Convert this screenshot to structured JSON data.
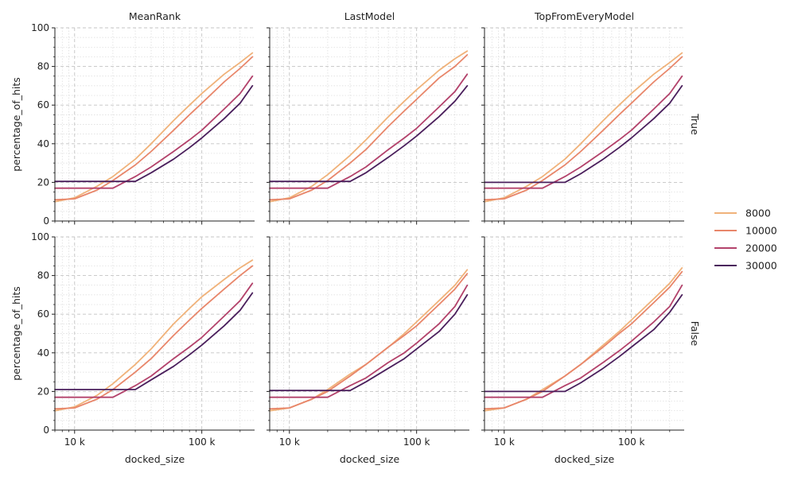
{
  "chart_data": {
    "type": "line",
    "layout": "facet-grid",
    "x_scale": "log",
    "xlabel": "docked_size",
    "ylabel": "percentage_of_hits",
    "xlim": [
      7000,
      260000
    ],
    "ylim": [
      0,
      100
    ],
    "x_ticks": [
      {
        "value": 10000,
        "label": "10 k"
      },
      {
        "value": 100000,
        "label": "100 k"
      }
    ],
    "y_ticks": [
      0,
      20,
      40,
      60,
      80,
      100
    ],
    "grid": true,
    "legend_position": "right",
    "columns": [
      "MeanRank",
      "LastModel",
      "TopFromEveryModel"
    ],
    "rows": [
      "True",
      "False"
    ],
    "colors": {
      "8000": "#f0b27a",
      "10000": "#e8866a",
      "20000": "#b3426b",
      "30000": "#4a1f5c"
    },
    "x": [
      7000,
      10000,
      15000,
      20000,
      30000,
      40000,
      60000,
      80000,
      100000,
      150000,
      200000,
      250000
    ],
    "panels": [
      {
        "column": "MeanRank",
        "row": "True",
        "series": [
          {
            "name": "8000",
            "values": [
              10,
              12,
              18,
              23,
              32,
              40,
              52,
              60,
              66,
              76,
              82,
              87
            ]
          },
          {
            "name": "10000",
            "values": [
              11,
              11.5,
              16,
              21,
              29,
              36,
              47,
              55,
              61,
              72,
              79,
              85
            ]
          },
          {
            "name": "20000",
            "values": [
              17,
              17,
              17,
              17,
              23,
              28,
              36,
              42,
              47,
              58,
              66,
              75
            ]
          },
          {
            "name": "30000",
            "values": [
              20.5,
              20.5,
              20.5,
              20.5,
              20.5,
              25,
              32,
              38,
              43,
              53,
              61,
              70
            ]
          }
        ]
      },
      {
        "column": "LastModel",
        "row": "True",
        "series": [
          {
            "name": "8000",
            "values": [
              10,
              12,
              18,
              24,
              34,
              42,
              54,
              62,
              68,
              78,
              84,
              88
            ]
          },
          {
            "name": "10000",
            "values": [
              11,
              11.5,
              16,
              21,
              30,
              37,
              49,
              57,
              63,
              74,
              80,
              86
            ]
          },
          {
            "name": "20000",
            "values": [
              17,
              17,
              17,
              17,
              23,
              28,
              37,
              43,
              48,
              59,
              67,
              76
            ]
          },
          {
            "name": "30000",
            "values": [
              20.5,
              20.5,
              20.5,
              20.5,
              20.5,
              25,
              33,
              39,
              44,
              54,
              62,
              70
            ]
          }
        ]
      },
      {
        "column": "TopFromEveryModel",
        "row": "True",
        "series": [
          {
            "name": "8000",
            "values": [
              10,
              12,
              18,
              23,
              32,
              40,
              52,
              60,
              66,
              76,
              82,
              87
            ]
          },
          {
            "name": "10000",
            "values": [
              11,
              11.5,
              16,
              21,
              29,
              36,
              47,
              55,
              61,
              72,
              79,
              85
            ]
          },
          {
            "name": "20000",
            "values": [
              17,
              17,
              17,
              17,
              23,
              28,
              36,
              42,
              47,
              58,
              66,
              75
            ]
          },
          {
            "name": "30000",
            "values": [
              20,
              20,
              20,
              20,
              20,
              24.5,
              32,
              38,
              43,
              53,
              61,
              70
            ]
          }
        ]
      },
      {
        "column": "MeanRank",
        "row": "False",
        "series": [
          {
            "name": "8000",
            "values": [
              10,
              12,
              18,
              24,
              34,
              42,
              55,
              63,
              69,
              78,
              84,
              88
            ]
          },
          {
            "name": "10000",
            "values": [
              11,
              11.5,
              16,
              21,
              30,
              37,
              49,
              57,
              63,
              73,
              80,
              85
            ]
          },
          {
            "name": "20000",
            "values": [
              17,
              17,
              17,
              17,
              23,
              28,
              37,
              43,
              48,
              59,
              67,
              76
            ]
          },
          {
            "name": "30000",
            "values": [
              21,
              21,
              21,
              21,
              21,
              26,
              33,
              39,
              44,
              54,
              62,
              71
            ]
          }
        ]
      },
      {
        "column": "LastModel",
        "row": "False",
        "series": [
          {
            "name": "8000",
            "values": [
              10,
              11.5,
              16,
              21,
              29,
              34,
              43,
              50,
              56,
              67,
              75,
              83
            ]
          },
          {
            "name": "10000",
            "values": [
              11,
              11.5,
              16,
              20,
              28,
              34,
              43,
              49,
              54,
              65,
              73,
              81
            ]
          },
          {
            "name": "20000",
            "values": [
              17,
              17,
              17,
              17,
              23,
              27,
              35,
              40,
              45,
              55,
              64,
              75
            ]
          },
          {
            "name": "30000",
            "values": [
              20.5,
              20.5,
              20.5,
              20.5,
              20.5,
              25,
              32,
              37,
              42,
              51,
              60,
              70
            ]
          }
        ]
      },
      {
        "column": "TopFromEveryModel",
        "row": "False",
        "series": [
          {
            "name": "8000",
            "values": [
              10,
              11.5,
              16,
              21,
              28,
              34,
              44,
              51,
              57,
              68,
              76,
              84
            ]
          },
          {
            "name": "10000",
            "values": [
              11,
              11.5,
              16,
              20,
              28,
              34,
              43,
              50,
              55,
              66,
              74,
              82
            ]
          },
          {
            "name": "20000",
            "values": [
              17,
              17,
              17,
              17,
              23,
              27,
              35,
              41,
              46,
              56,
              64,
              75
            ]
          },
          {
            "name": "30000",
            "values": [
              20,
              20,
              20,
              20,
              20,
              24.5,
              32,
              38,
              43,
              52,
              61,
              70
            ]
          }
        ]
      }
    ]
  }
}
